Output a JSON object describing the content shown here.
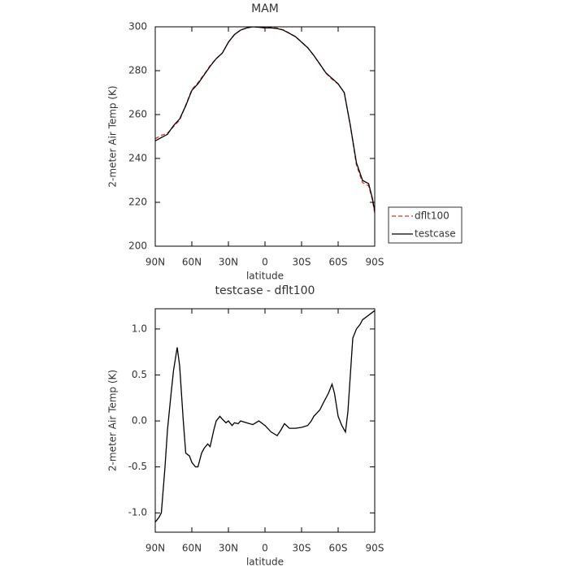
{
  "chart_data": [
    {
      "type": "line",
      "title": "MAM",
      "x_label": "latitude",
      "y_label": "2-meter Air Temp (K)",
      "x": [
        90,
        85,
        80,
        75,
        70,
        65,
        60,
        55,
        50,
        45,
        40,
        35,
        30,
        25,
        20,
        15,
        10,
        5,
        0,
        -5,
        -10,
        -15,
        -20,
        -25,
        -30,
        -35,
        -40,
        -45,
        -50,
        -55,
        -60,
        -65,
        -70,
        -75,
        -80,
        -85,
        -88,
        -90
      ],
      "series": [
        {
          "name": "dflt100",
          "color": "#e03030",
          "linestyle": "dashed",
          "values": [
            249,
            250.5,
            251.5,
            254.5,
            257.5,
            264.3,
            271.4,
            274.5,
            278.3,
            282.3,
            285.5,
            288,
            293,
            296.5,
            298.5,
            299.5,
            300,
            299.8,
            299.5,
            299.6,
            299.4,
            298.6,
            297.1,
            295.6,
            293.1,
            290.5,
            287,
            282.9,
            278.8,
            276.1,
            273.9,
            270.1,
            255,
            237,
            229,
            227.5,
            221.3,
            215
          ]
        },
        {
          "name": "testcase",
          "color": "#000000",
          "linestyle": "solid",
          "values": [
            248,
            249.5,
            251,
            255,
            258,
            264,
            271,
            274,
            278,
            282,
            285.5,
            288,
            293,
            296.5,
            298.5,
            299.5,
            300,
            299.8,
            299.5,
            299.5,
            299.2,
            298.5,
            297,
            295.5,
            293,
            290.5,
            287,
            283,
            279,
            276.5,
            274,
            270,
            255,
            238,
            230,
            228.5,
            222,
            216
          ]
        }
      ],
      "xlim": [
        90,
        -90
      ],
      "xticks": [
        {
          "value": 90,
          "label": "90N"
        },
        {
          "value": 60,
          "label": "60N"
        },
        {
          "value": 30,
          "label": "30N"
        },
        0,
        {
          "value": -30,
          "label": "30S"
        },
        {
          "value": -60,
          "label": "60S"
        },
        {
          "value": -90,
          "label": "90S"
        }
      ],
      "ylim": [
        200,
        300
      ],
      "yticks": [
        200,
        220,
        240,
        260,
        280,
        300
      ]
    },
    {
      "type": "line",
      "title": "testcase - dflt100",
      "x_label": "latitude",
      "y_label": "2-meter Air Temp (K)",
      "x": [
        90,
        87,
        85,
        82,
        80,
        77,
        75,
        72,
        70,
        67,
        65,
        62,
        60,
        57,
        55,
        52,
        50,
        47,
        45,
        42,
        40,
        37,
        35,
        32,
        30,
        27,
        25,
        22,
        20,
        15,
        10,
        5,
        0,
        -5,
        -10,
        -13,
        -16,
        -20,
        -25,
        -30,
        -35,
        -38,
        -40,
        -45,
        -48,
        -52,
        -55,
        -57,
        -60,
        -63,
        -66,
        -68,
        -72,
        -75,
        -78,
        -80,
        -90
      ],
      "series": [
        {
          "name": "testcase",
          "color": "#000000",
          "linestyle": "solid",
          "values": [
            -1.1,
            -1.05,
            -1.0,
            -0.5,
            -0.1,
            0.3,
            0.55,
            0.8,
            0.6,
            0.0,
            -0.35,
            -0.38,
            -0.45,
            -0.5,
            -0.5,
            -0.35,
            -0.3,
            -0.25,
            -0.28,
            -0.1,
            0.0,
            0.05,
            0.02,
            -0.02,
            0.0,
            -0.05,
            -0.02,
            -0.03,
            0.0,
            -0.02,
            -0.04,
            0.0,
            -0.05,
            -0.12,
            -0.16,
            -0.1,
            -0.03,
            -0.08,
            -0.08,
            -0.07,
            -0.05,
            0.0,
            0.05,
            0.12,
            0.2,
            0.3,
            0.4,
            0.3,
            0.05,
            -0.05,
            -0.12,
            0.1,
            0.9,
            1.0,
            1.05,
            1.1,
            1.2
          ]
        }
      ],
      "xlim": [
        90,
        -90
      ],
      "xticks": [
        {
          "value": 90,
          "label": "90N"
        },
        {
          "value": 60,
          "label": "60N"
        },
        {
          "value": 30,
          "label": "30N"
        },
        0,
        {
          "value": -30,
          "label": "30S"
        },
        {
          "value": -60,
          "label": "60S"
        },
        {
          "value": -90,
          "label": "90S"
        }
      ],
      "ylim": [
        -1.21,
        1.22
      ],
      "yticks": [
        {
          "value": -1,
          "label": "-1.0"
        },
        -0.5,
        {
          "value": 0,
          "label": "0.0"
        },
        0.5,
        {
          "value": 1,
          "label": "1.0"
        }
      ]
    }
  ]
}
